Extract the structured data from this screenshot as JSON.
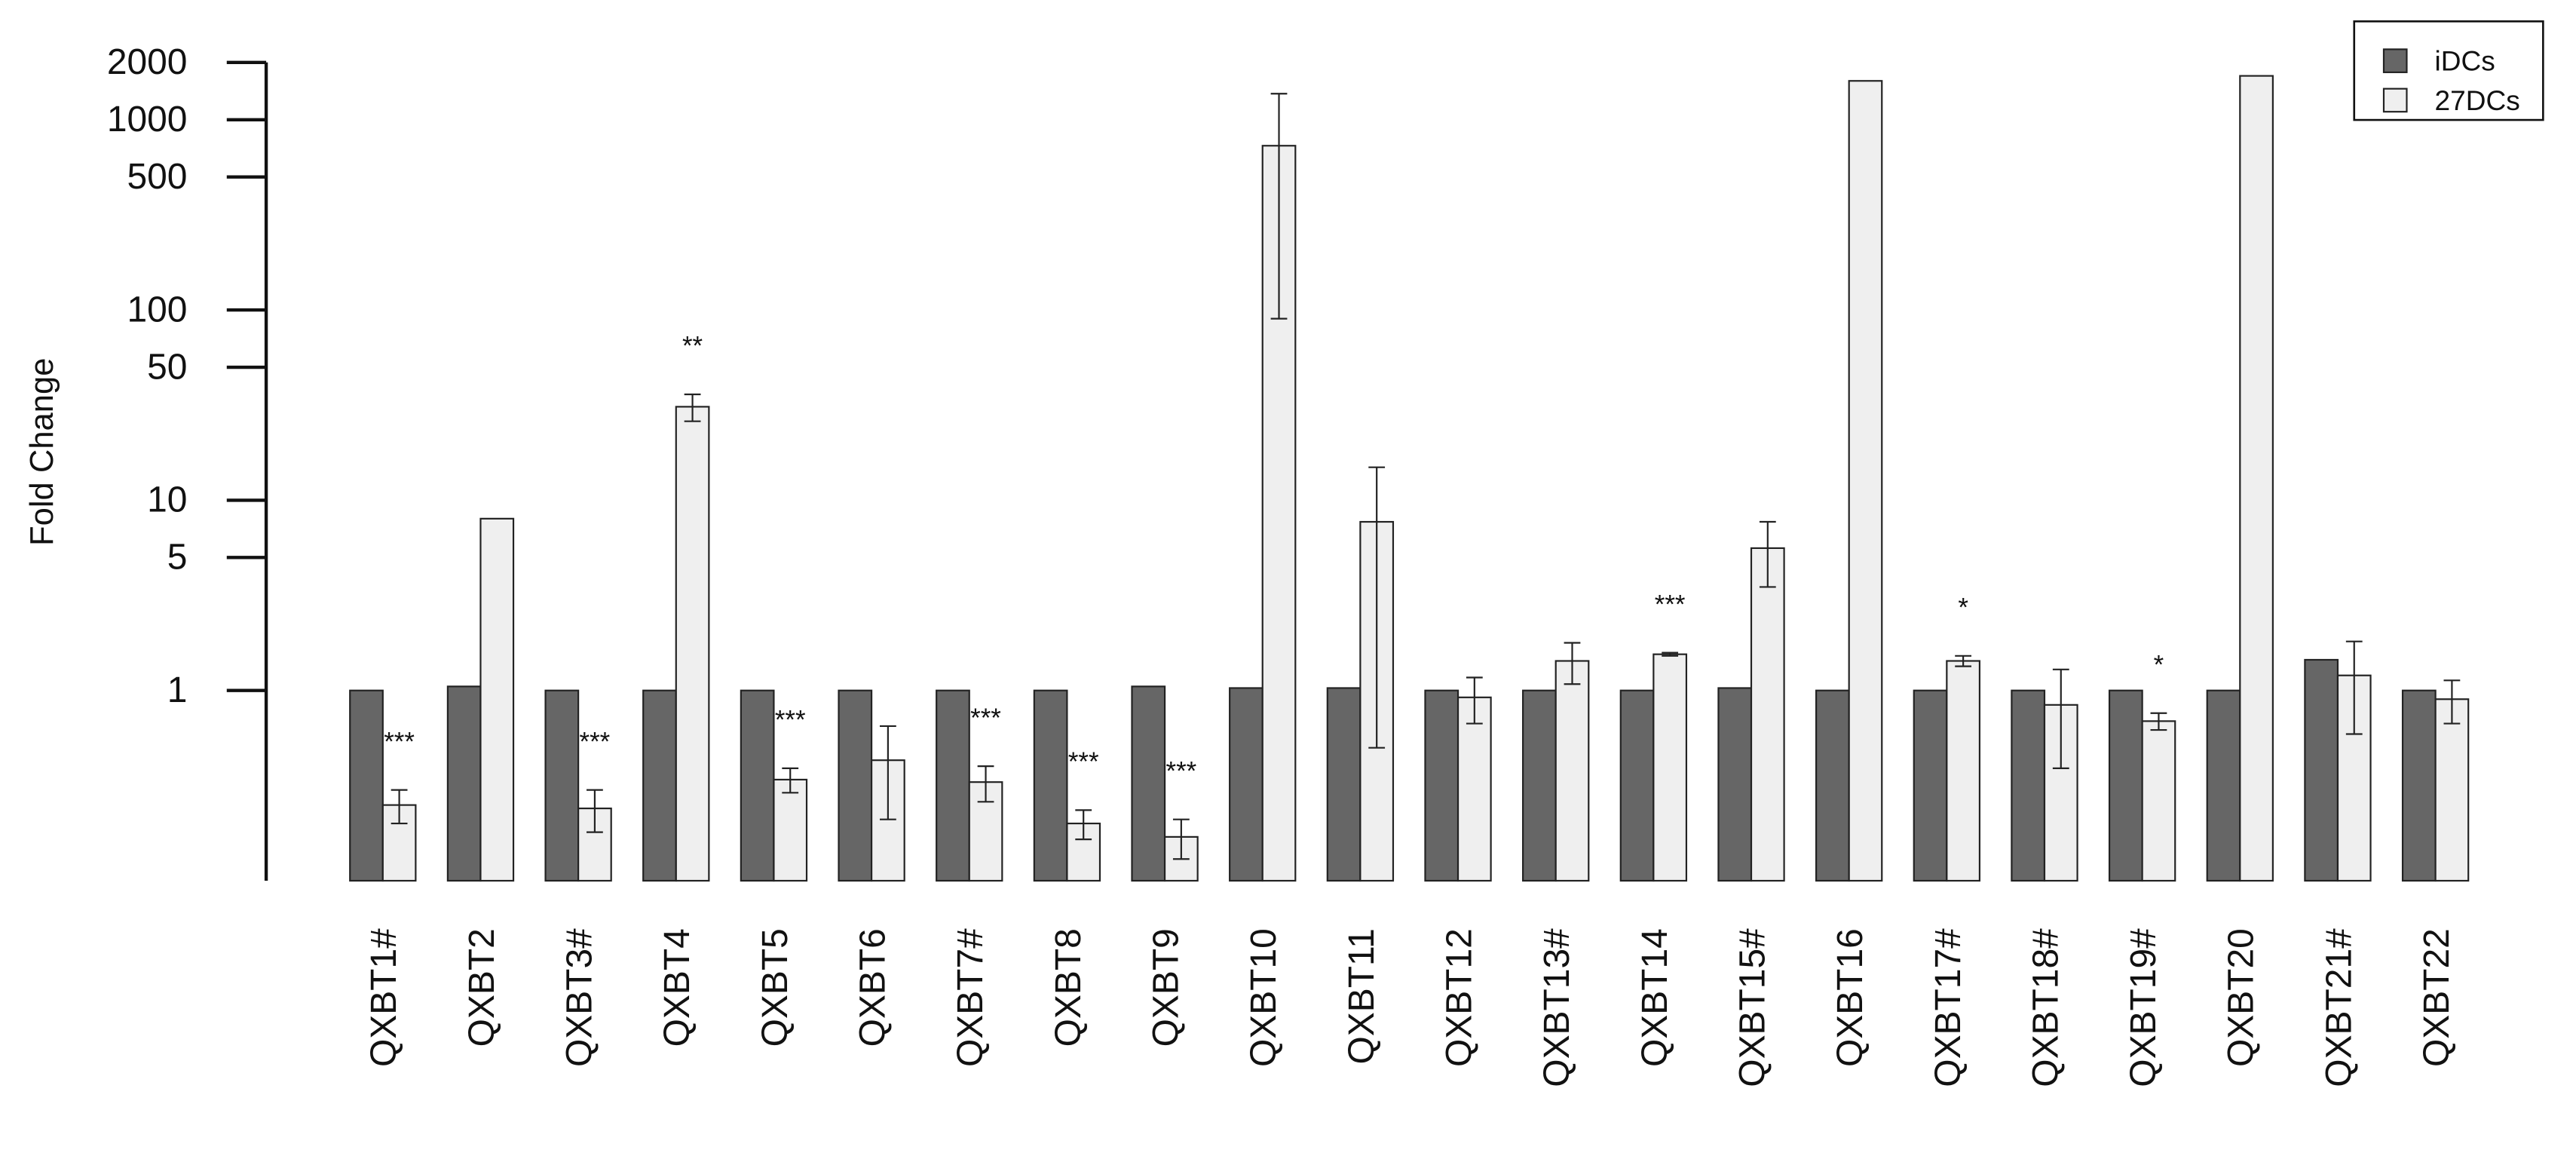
{
  "chart_data": {
    "type": "bar",
    "y_label": "Fold Change",
    "log_scale": true,
    "legend_position": "upper right",
    "categories": [
      "QXBT1#",
      "QXBT2",
      "QXBT3#",
      "QXBT4",
      "QXBT5",
      "QXBT6",
      "QXBT7#",
      "QXBT8",
      "QXBT9",
      "QXBT10",
      "QXBT11",
      "QXBT12",
      "QXBT13#",
      "QXBT14",
      "QXBT15#",
      "QXBT16",
      "QXBT17#",
      "QXBT18#",
      "QXBT19#",
      "QXBT20",
      "QXBT21#",
      "QXBT22"
    ],
    "series": [
      {
        "name": "iDCs",
        "color": "#666666",
        "values": [
          1,
          1.05,
          1,
          1,
          1,
          1,
          1,
          1,
          1.05,
          1.03,
          1.03,
          1,
          1,
          1,
          1.03,
          1,
          1,
          1,
          1,
          1,
          1.45,
          1
        ],
        "errors": [
          null,
          null,
          null,
          null,
          null,
          null,
          null,
          null,
          null,
          null,
          null,
          null,
          null,
          null,
          null,
          null,
          null,
          null,
          null,
          null,
          null,
          null
        ]
      },
      {
        "name": "27DCs",
        "color": "#efefef",
        "values": [
          0.25,
          8,
          0.24,
          31,
          0.34,
          0.43,
          0.33,
          0.2,
          0.17,
          730,
          7.7,
          0.92,
          1.43,
          1.55,
          5.6,
          1600,
          1.43,
          0.84,
          0.69,
          1700,
          1.2,
          0.9
        ],
        "errors": [
          0.05,
          null,
          0.06,
          5,
          0.05,
          0.22,
          0.07,
          0.035,
          0.04,
          640,
          7.2,
          0.25,
          0.35,
          0.03,
          2.1,
          null,
          0.09,
          0.45,
          0.07,
          null,
          0.61,
          0.23
        ],
        "annotations": [
          "***",
          null,
          "***",
          "**",
          "***",
          null,
          "***",
          "***",
          "***",
          null,
          null,
          null,
          null,
          "***",
          null,
          null,
          "*",
          null,
          "*",
          null,
          null,
          null
        ]
      }
    ],
    "ylim": [
      0.1,
      2000
    ],
    "yticks": [
      1,
      5,
      10,
      50,
      100,
      500,
      1000,
      2000
    ]
  }
}
